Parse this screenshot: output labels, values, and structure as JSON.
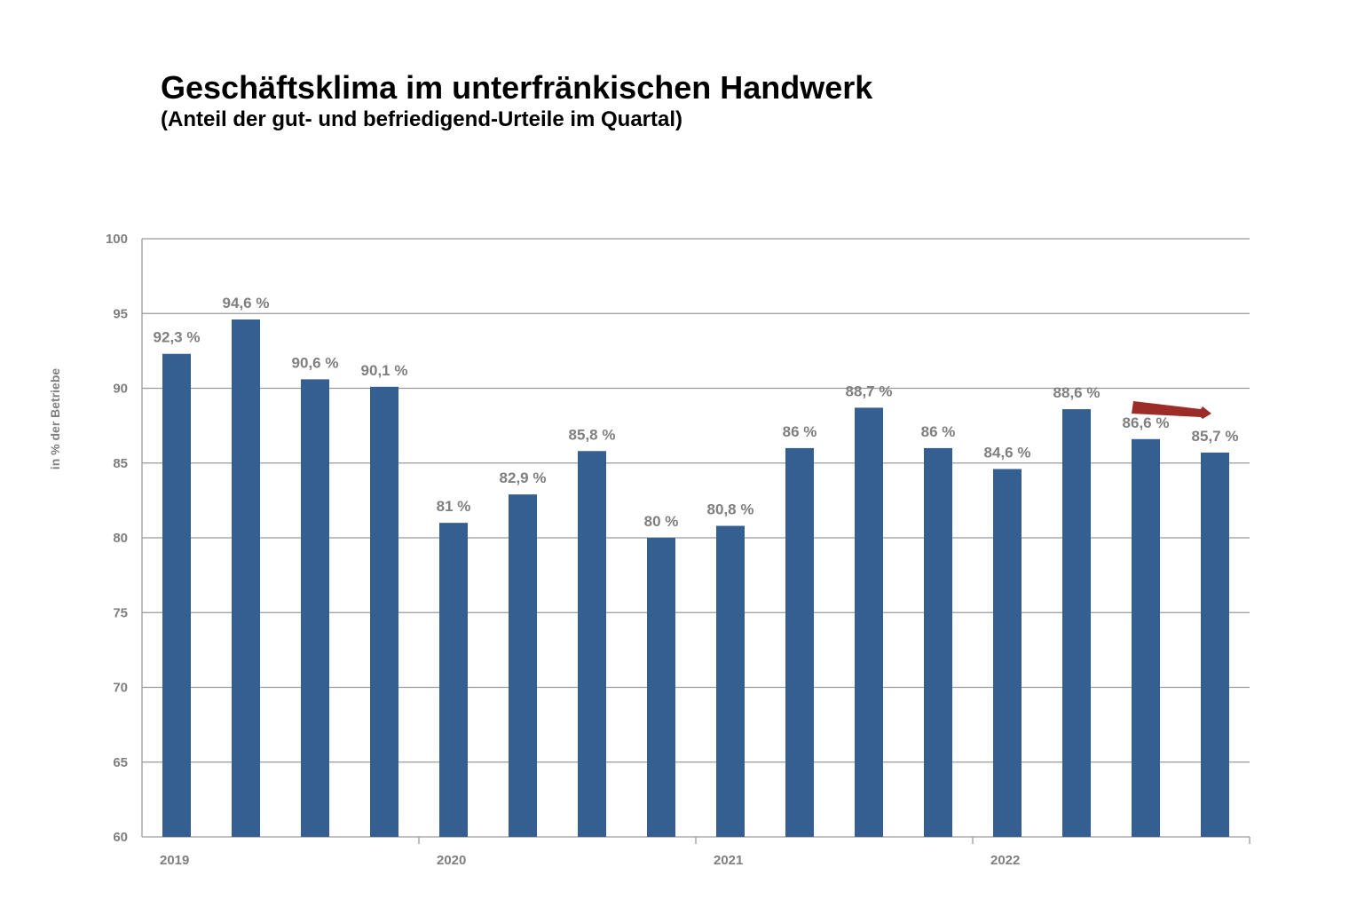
{
  "chart_data": {
    "type": "bar",
    "title": "Geschäftsklima im unterfränkischen Handwerk",
    "subtitle": "(Anteil der gut- und befriedigend-Urteile im Quartal)",
    "ylabel": "in % der Betriebe",
    "xlabel": "",
    "ylim": [
      60,
      100
    ],
    "yticks": [
      "100",
      "95",
      "90",
      "85",
      "80",
      "75",
      "70",
      "65",
      "60"
    ],
    "year_labels": [
      "2019",
      "2020",
      "2021",
      "2022"
    ],
    "quarters_per_year": 4,
    "values": [
      92.3,
      94.6,
      90.6,
      90.1,
      81,
      82.9,
      85.8,
      80,
      80.8,
      86,
      88.7,
      86,
      84.6,
      88.6,
      86.6,
      85.7
    ],
    "value_labels": [
      "92,3 %",
      "94,6 %",
      "90,6 %",
      "90,1 %",
      "81 %",
      "82,9 %",
      "85,8 %",
      "80 %",
      "80,8 %",
      "86 %",
      "88,7 %",
      "86 %",
      "84,6 %",
      "88,6 %",
      "86,6 %",
      "85,7 %"
    ],
    "grid": true,
    "legend": "none",
    "bar_color": "#355e91",
    "grid_color": "#9a9a9a",
    "label_color": "#7f7f7f",
    "trend_arrow": {
      "icon": "trend-arrow-down-icon",
      "color": "#9b2c28",
      "from_bar_index": 14,
      "to_bar_index": 15
    }
  }
}
